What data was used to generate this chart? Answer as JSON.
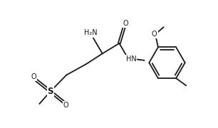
{
  "background_color": "#ffffff",
  "line_color": "#1a1a1a",
  "line_width": 1.3,
  "text_color": "#1a1a1a",
  "font_size": 7.0,
  "figsize": [
    3.06,
    1.8
  ],
  "dpi": 100,
  "xlim": [
    -0.5,
    10.5
  ],
  "ylim": [
    -0.5,
    6.5
  ]
}
